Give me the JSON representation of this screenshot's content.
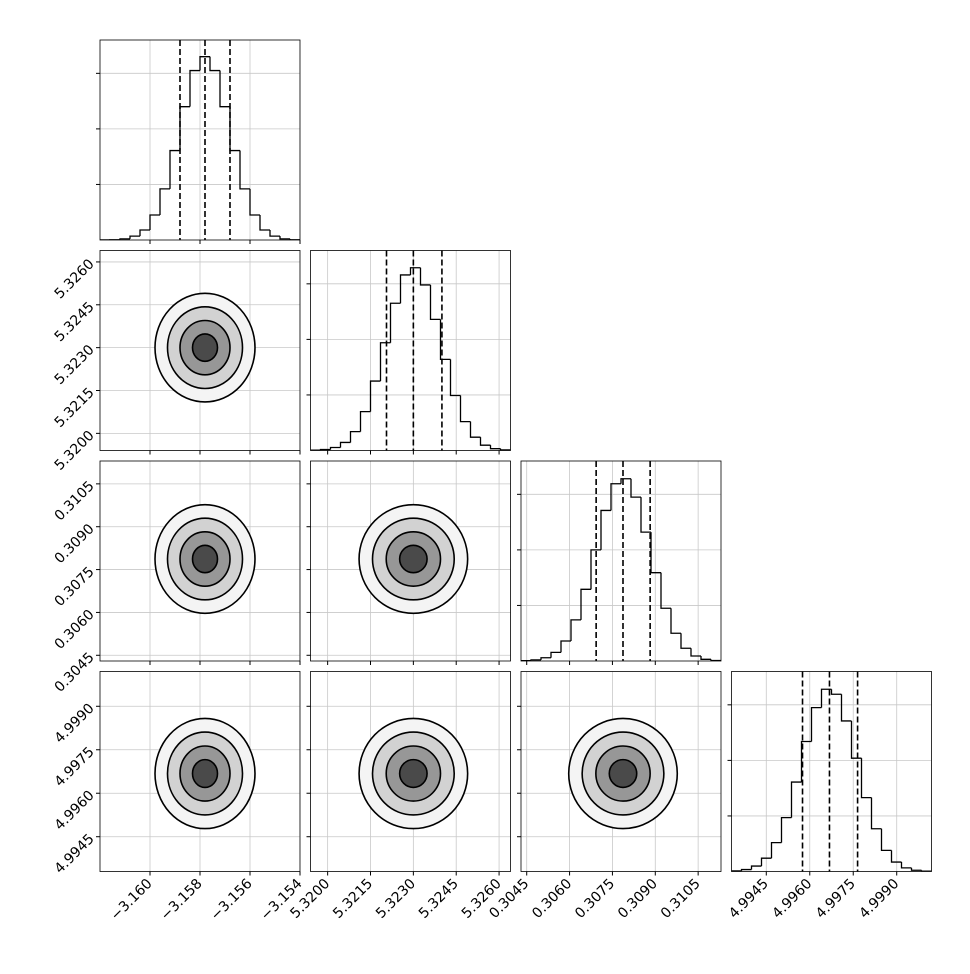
{
  "chart_data": {
    "type": "corner",
    "grid": true,
    "line_color": "#000000",
    "grid_color": "#c8c8c8",
    "contour_fills": [
      "#f4f4f4",
      "#d2d2d2",
      "#979797",
      "#4a4a4a"
    ],
    "hist_ylim": [
      0,
      3.6
    ],
    "hist_yticks": [
      1,
      2,
      3
    ],
    "parameters": [
      {
        "lim": [
          -3.162,
          -3.154
        ],
        "ticks": [
          {
            "value": -3.16,
            "label": "−3.160"
          },
          {
            "value": -3.158,
            "label": "−3.158"
          },
          {
            "value": -3.156,
            "label": "−3.156"
          },
          {
            "value": -3.154,
            "label": "−3.154"
          }
        ]
      },
      {
        "lim": [
          5.3194,
          5.3264
        ],
        "ticks": [
          {
            "value": 5.32,
            "label": "5.3200"
          },
          5.3215,
          {
            "value": 5.323,
            "label": "5.3230"
          },
          5.3245,
          {
            "value": 5.326,
            "label": "5.3260"
          }
        ]
      },
      {
        "lim": [
          0.3043,
          0.3113
        ],
        "ticks": [
          0.3045,
          {
            "value": 0.306,
            "label": "0.3060"
          },
          0.3075,
          {
            "value": 0.309,
            "label": "0.3090"
          },
          0.3105
        ]
      },
      {
        "lim": [
          4.9933,
          5.0002
        ],
        "ticks": [
          4.9945,
          {
            "value": 4.996,
            "label": "4.9960"
          },
          4.9975,
          {
            "value": 4.999,
            "label": "4.9990"
          }
        ]
      }
    ],
    "histograms": [
      {
        "bins": [
          -3.162,
          -3.1616,
          -3.1612,
          -3.1608,
          -3.1604,
          -3.16,
          -3.1596,
          -3.1592,
          -3.1588,
          -3.1584,
          -3.158,
          -3.1576,
          -3.1572,
          -3.1568,
          -3.1564,
          -3.156,
          -3.1556,
          -3.1552,
          -3.1548,
          -3.1544,
          -3.154
        ],
        "counts": [
          0.001,
          0.005,
          0.02,
          0.07,
          0.18,
          0.45,
          0.92,
          1.61,
          2.4,
          3.05,
          3.3,
          3.05,
          2.4,
          1.61,
          0.92,
          0.45,
          0.18,
          0.07,
          0.02,
          0.005
        ],
        "quantiles": [
          -3.1588,
          -3.1578,
          -3.1568
        ]
      },
      {
        "bins": [
          5.3194,
          5.31975,
          5.3201,
          5.32045,
          5.3208,
          5.32115,
          5.3215,
          5.32185,
          5.3222,
          5.32255,
          5.3229,
          5.32325,
          5.3236,
          5.32395,
          5.3243,
          5.32465,
          5.325,
          5.32535,
          5.3257,
          5.32605,
          5.3264
        ],
        "counts": [
          0.006,
          0.017,
          0.054,
          0.145,
          0.34,
          0.7,
          1.25,
          1.94,
          2.65,
          3.16,
          3.29,
          2.98,
          2.36,
          1.64,
          0.99,
          0.52,
          0.24,
          0.096,
          0.033,
          0.01
        ],
        "quantiles": [
          5.32206,
          5.323,
          5.324
        ]
      },
      {
        "bins": [
          0.3043,
          0.30465,
          0.305,
          0.30535,
          0.3057,
          0.30605,
          0.3064,
          0.30675,
          0.3071,
          0.30745,
          0.3078,
          0.30815,
          0.3085,
          0.30885,
          0.3092,
          0.30955,
          0.3099,
          0.31025,
          0.3106,
          0.31095,
          0.3113
        ],
        "counts": [
          0.006,
          0.02,
          0.058,
          0.155,
          0.36,
          0.74,
          1.29,
          2.0,
          2.71,
          3.19,
          3.28,
          2.95,
          2.32,
          1.59,
          0.95,
          0.5,
          0.23,
          0.09,
          0.03,
          0.009
        ],
        "quantiles": [
          0.30693,
          0.30787,
          0.30882
        ]
      },
      {
        "bins": [
          4.9933,
          4.993645,
          4.99399,
          4.994335,
          4.99468,
          4.995025,
          4.99537,
          4.995715,
          4.99606,
          4.996405,
          4.99675,
          4.997095,
          4.99744,
          4.997785,
          4.99813,
          4.998475,
          4.99882,
          4.999165,
          4.99951,
          4.999855,
          5.0002
        ],
        "counts": [
          0.011,
          0.035,
          0.098,
          0.24,
          0.52,
          0.97,
          1.61,
          2.34,
          2.95,
          3.28,
          3.19,
          2.71,
          2.04,
          1.33,
          0.77,
          0.38,
          0.17,
          0.065,
          0.022,
          0.007
        ],
        "quantiles": [
          4.99575,
          4.99668,
          4.99765
        ]
      }
    ],
    "pairs": [
      {
        "x": 0,
        "y": 1,
        "center": [
          -3.1578,
          5.323
        ],
        "contours": [
          [
            0.002,
            0.0019
          ],
          [
            0.0015,
            0.00143
          ],
          [
            0.001,
            0.00095
          ],
          [
            0.0005,
            0.00048
          ]
        ]
      },
      {
        "x": 0,
        "y": 2,
        "center": [
          -3.1578,
          0.30787
        ],
        "contours": [
          [
            0.002,
            0.0019
          ],
          [
            0.0015,
            0.00143
          ],
          [
            0.001,
            0.00095
          ],
          [
            0.0005,
            0.00048
          ]
        ]
      },
      {
        "x": 1,
        "y": 2,
        "center": [
          5.323,
          0.30787
        ],
        "contours": [
          [
            0.0019,
            0.0019
          ],
          [
            0.00143,
            0.00143
          ],
          [
            0.00095,
            0.00095
          ],
          [
            0.00048,
            0.00048
          ]
        ]
      },
      {
        "x": 0,
        "y": 3,
        "center": [
          -3.1578,
          4.99668
        ],
        "contours": [
          [
            0.002,
            0.0019
          ],
          [
            0.0015,
            0.00143
          ],
          [
            0.001,
            0.00095
          ],
          [
            0.0005,
            0.00048
          ]
        ]
      },
      {
        "x": 1,
        "y": 3,
        "center": [
          5.323,
          4.99668
        ],
        "contours": [
          [
            0.0019,
            0.0019
          ],
          [
            0.00143,
            0.00143
          ],
          [
            0.00095,
            0.00095
          ],
          [
            0.00048,
            0.00048
          ]
        ]
      },
      {
        "x": 2,
        "y": 3,
        "center": [
          0.30787,
          4.99668
        ],
        "contours": [
          [
            0.0019,
            0.0019
          ],
          [
            0.00143,
            0.00143
          ],
          [
            0.00095,
            0.00095
          ],
          [
            0.00048,
            0.00048
          ]
        ]
      }
    ]
  }
}
